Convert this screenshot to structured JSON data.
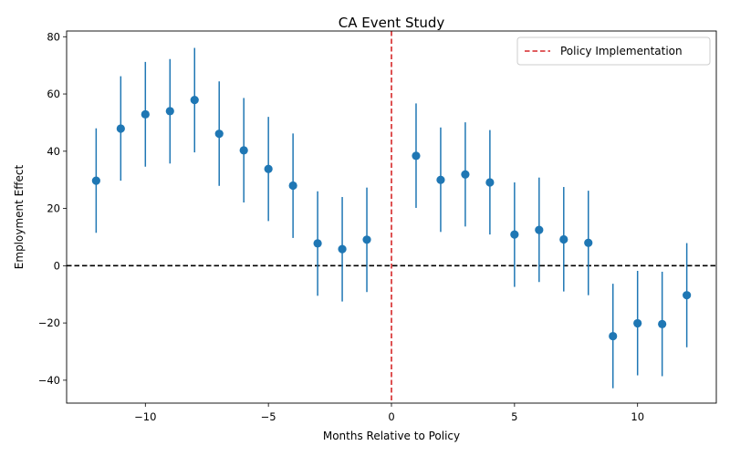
{
  "chart_data": {
    "type": "scatter",
    "title": "CA Event Study",
    "xlabel": "Months Relative to Policy",
    "ylabel": "Employment Effect",
    "xlim": [
      -13.2,
      13.2
    ],
    "ylim": [
      -48,
      82
    ],
    "xticks": [
      -10,
      -5,
      0,
      5,
      10
    ],
    "xtick_labels": [
      "−10",
      "−5",
      "0",
      "5",
      "10"
    ],
    "yticks": [
      -40,
      -20,
      0,
      20,
      40,
      60,
      80
    ],
    "ytick_labels": [
      "−40",
      "−20",
      "0",
      "20",
      "40",
      "60",
      "80"
    ],
    "grid": false,
    "series": [
      {
        "color": "#1f77b4",
        "points": [
          {
            "x": -12,
            "y": 29.7,
            "lo": 11.5,
            "hi": 48.0
          },
          {
            "x": -11,
            "y": 47.9,
            "lo": 29.7,
            "hi": 66.2
          },
          {
            "x": -10,
            "y": 52.9,
            "lo": 34.6,
            "hi": 71.2
          },
          {
            "x": -9,
            "y": 54.0,
            "lo": 35.7,
            "hi": 72.2
          },
          {
            "x": -8,
            "y": 57.9,
            "lo": 39.6,
            "hi": 76.1
          },
          {
            "x": -7,
            "y": 46.1,
            "lo": 27.9,
            "hi": 64.4
          },
          {
            "x": -6,
            "y": 40.3,
            "lo": 22.1,
            "hi": 58.6
          },
          {
            "x": -5,
            "y": 33.8,
            "lo": 15.6,
            "hi": 52.0
          },
          {
            "x": -4,
            "y": 28.0,
            "lo": 9.7,
            "hi": 46.2
          },
          {
            "x": -3,
            "y": 7.8,
            "lo": -10.5,
            "hi": 26.0
          },
          {
            "x": -2,
            "y": 5.8,
            "lo": -12.5,
            "hi": 24.0
          },
          {
            "x": -1,
            "y": 9.1,
            "lo": -9.2,
            "hi": 27.3
          },
          {
            "x": 1,
            "y": 38.4,
            "lo": 20.2,
            "hi": 56.7
          },
          {
            "x": 2,
            "y": 30.0,
            "lo": 11.8,
            "hi": 48.3
          },
          {
            "x": 3,
            "y": 31.9,
            "lo": 13.7,
            "hi": 50.1
          },
          {
            "x": 4,
            "y": 29.1,
            "lo": 10.9,
            "hi": 47.4
          },
          {
            "x": 5,
            "y": 10.9,
            "lo": -7.4,
            "hi": 29.1
          },
          {
            "x": 6,
            "y": 12.5,
            "lo": -5.7,
            "hi": 30.8
          },
          {
            "x": 7,
            "y": 9.2,
            "lo": -9.0,
            "hi": 27.5
          },
          {
            "x": 8,
            "y": 8.0,
            "lo": -10.3,
            "hi": 26.2
          },
          {
            "x": 9,
            "y": -24.6,
            "lo": -42.8,
            "hi": -6.3
          },
          {
            "x": 10,
            "y": -20.1,
            "lo": -38.3,
            "hi": -1.8
          },
          {
            "x": 11,
            "y": -20.4,
            "lo": -38.6,
            "hi": -2.1
          },
          {
            "x": 12,
            "y": -10.3,
            "lo": -28.5,
            "hi": 7.9
          }
        ]
      }
    ],
    "reference_lines": [
      {
        "orientation": "horizontal",
        "value": 0,
        "color": "#000000",
        "style": "dashed"
      },
      {
        "orientation": "vertical",
        "value": 0,
        "color": "#d62728",
        "style": "dashed",
        "label": "Policy Implementation"
      }
    ],
    "legend": {
      "placement": "top-right",
      "entries": [
        "Policy Implementation"
      ]
    }
  }
}
